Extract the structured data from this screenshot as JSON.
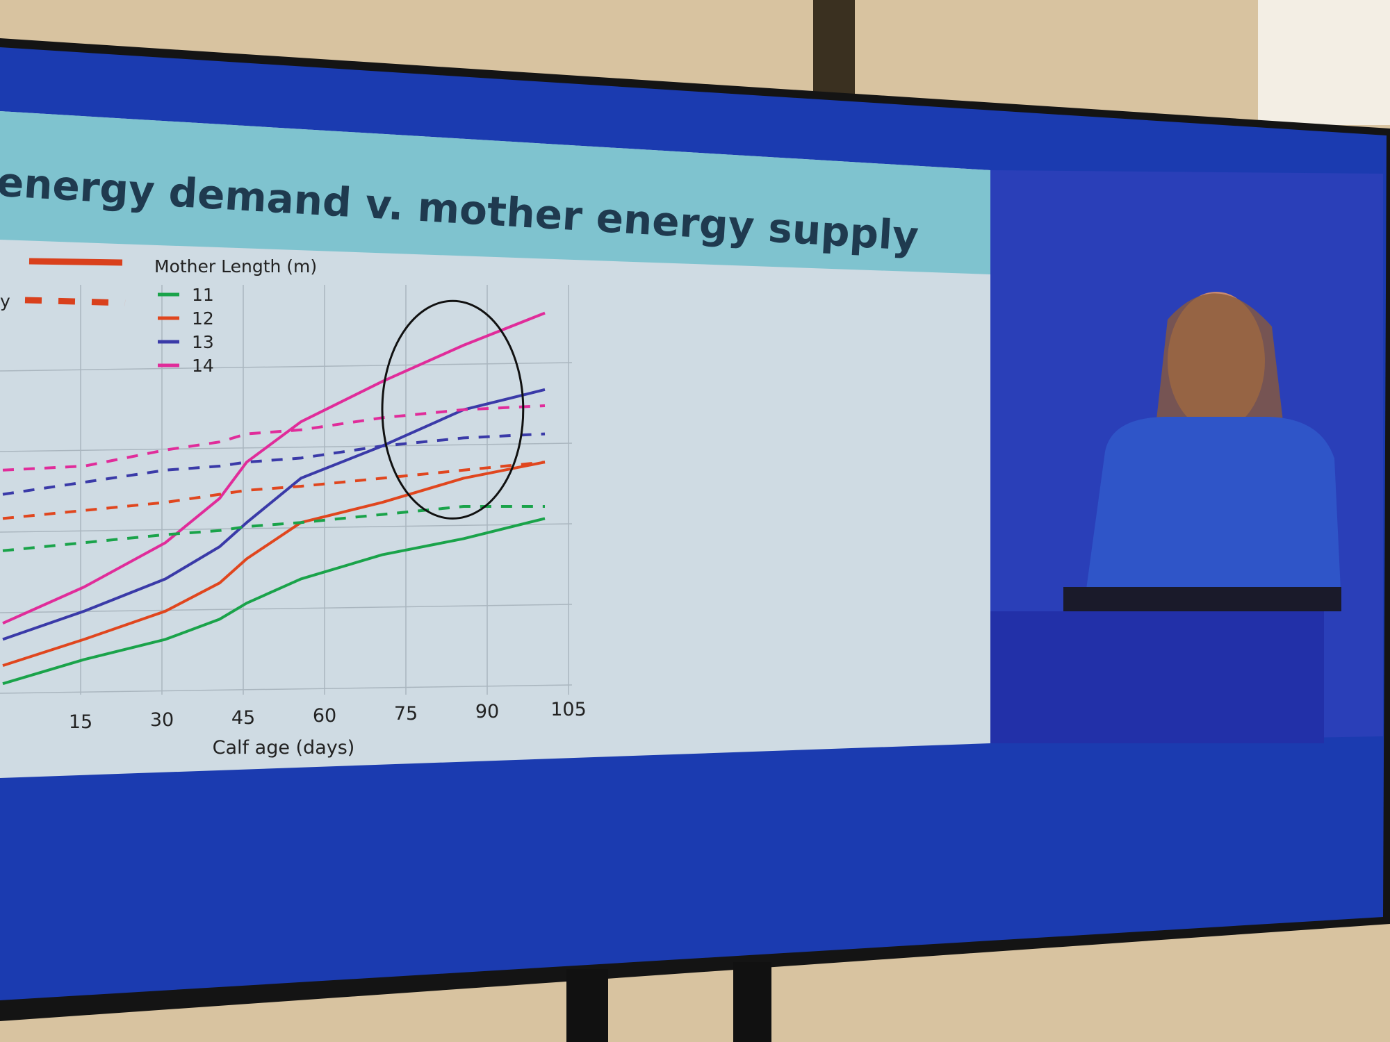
{
  "slide": {
    "title": "energy demand v. mother energy supply"
  },
  "colors": {
    "screen_frame": "#1b3bb0",
    "slide_header": "#7fc3cf",
    "slide_body": "#cfdbe3",
    "mother_11": "#1aa34a",
    "mother_12": "#e0461e",
    "mother_13": "#3a3aa8",
    "mother_14": "#e02c9a",
    "legend_style": "#d9401c"
  },
  "chart_data": {
    "type": "line",
    "title": "energy demand v. mother energy supply",
    "xlabel": "Calf age (days)",
    "ylabel": "",
    "xlim": [
      0,
      105
    ],
    "ylim": [
      0,
      100
    ],
    "x_ticks": [
      15,
      30,
      45,
      60,
      75,
      90,
      105
    ],
    "grid": true,
    "legend": {
      "placement": "top-left",
      "style_entries": [
        {
          "label": "",
          "style": "solid"
        },
        {
          "label": "y",
          "style": "dashed"
        }
      ],
      "group_title": "Mother Length (m)",
      "group_entries": [
        "11",
        "12",
        "13",
        "14"
      ]
    },
    "x": [
      0,
      15,
      30,
      40,
      45,
      55,
      70,
      85,
      100
    ],
    "series": [
      {
        "name": "11",
        "style": "solid",
        "color": "#1aa34a",
        "values": [
          1,
          7,
          12,
          17,
          21,
          27,
          33,
          37,
          42
        ]
      },
      {
        "name": "12",
        "style": "solid",
        "color": "#e0461e",
        "values": [
          5.5,
          12,
          19,
          26,
          32,
          41,
          46,
          52,
          56
        ]
      },
      {
        "name": "13",
        "style": "solid",
        "color": "#3a3aa8",
        "values": [
          12,
          19,
          27,
          35,
          41,
          52,
          60,
          69,
          74
        ]
      },
      {
        "name": "14",
        "style": "solid",
        "color": "#e02c9a",
        "values": [
          16,
          25,
          36,
          47,
          56,
          66,
          76,
          85,
          93
        ]
      },
      {
        "name": "11",
        "style": "dashed",
        "color": "#1aa34a",
        "values": [
          34,
          36,
          38,
          39,
          40,
          41,
          43,
          45,
          45
        ]
      },
      {
        "name": "12",
        "style": "dashed",
        "color": "#e0461e",
        "values": [
          42,
          44,
          46,
          48,
          49,
          50,
          52,
          54,
          56
        ]
      },
      {
        "name": "13",
        "style": "dashed",
        "color": "#3a3aa8",
        "values": [
          48,
          51,
          54,
          55,
          56,
          57,
          60,
          62,
          63
        ]
      },
      {
        "name": "14",
        "style": "dashed",
        "color": "#e02c9a",
        "values": [
          54,
          55,
          59,
          61,
          63,
          64,
          67,
          69,
          70
        ]
      }
    ],
    "annotations": [
      {
        "type": "ellipse",
        "x_range": [
          70,
          96
        ],
        "y_range": [
          42,
          96
        ]
      }
    ]
  }
}
